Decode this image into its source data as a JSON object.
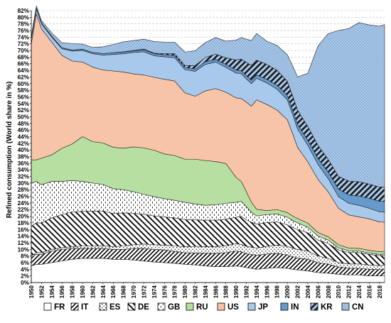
{
  "chart_data": {
    "type": "area",
    "stacked": true,
    "ylabel": "Refined consumption (World share in %)",
    "xlabel": "",
    "xlim": [
      1950,
      2019
    ],
    "ylim": [
      0,
      82
    ],
    "y_tick_step": 2,
    "y_tick_suffix": "%",
    "x_ticks": [
      1950,
      1952,
      1954,
      1956,
      1958,
      1960,
      1962,
      1964,
      1966,
      1968,
      1970,
      1972,
      1974,
      1976,
      1978,
      1980,
      1982,
      1984,
      1986,
      1988,
      1990,
      1992,
      1994,
      1996,
      1998,
      2000,
      2002,
      2004,
      2006,
      2008,
      2010,
      2012,
      2014,
      2016,
      2018
    ],
    "grid": "horizontal dashed",
    "legend_position": "bottom",
    "x": [
      1950,
      1951,
      1952,
      1954,
      1956,
      1958,
      1960,
      1962,
      1964,
      1966,
      1968,
      1970,
      1972,
      1974,
      1976,
      1978,
      1980,
      1982,
      1984,
      1986,
      1988,
      1990,
      1991,
      1992,
      1993,
      1994,
      1996,
      1998,
      2000,
      2001,
      2002,
      2004,
      2006,
      2008,
      2010,
      2012,
      2014,
      2016,
      2018,
      2019
    ],
    "series": [
      {
        "name": "FR",
        "color": "#ffffff",
        "pattern": "none",
        "values": [
          5.0,
          5.5,
          5.5,
          6.0,
          6.5,
          7.0,
          7.3,
          7.3,
          7.3,
          7.0,
          7.0,
          6.8,
          6.5,
          6.2,
          6.0,
          5.8,
          5.5,
          5.3,
          5.0,
          4.8,
          4.8,
          5.0,
          4.8,
          4.5,
          4.3,
          4.0,
          4.3,
          4.5,
          4.3,
          4.0,
          3.8,
          3.5,
          3.0,
          2.8,
          2.5,
          2.3,
          2.3,
          2.0,
          2.0,
          2.0
        ]
      },
      {
        "name": "IT",
        "color": "#ffffff",
        "pattern": "diag-right",
        "values": [
          2.5,
          3.0,
          3.0,
          3.5,
          3.5,
          3.3,
          3.0,
          3.0,
          3.0,
          3.0,
          3.0,
          3.5,
          3.8,
          3.8,
          3.8,
          3.6,
          3.5,
          3.6,
          3.8,
          4.0,
          4.2,
          4.5,
          4.5,
          4.2,
          4.2,
          4.2,
          4.3,
          4.3,
          4.0,
          3.8,
          3.6,
          3.5,
          3.0,
          2.7,
          2.2,
          2.0,
          2.0,
          2.0,
          1.9,
          2.0
        ]
      },
      {
        "name": "ES",
        "color": "#ffffff",
        "pattern": "dots",
        "values": [
          0.5,
          0.5,
          0.5,
          0.5,
          0.5,
          0.5,
          0.7,
          0.7,
          0.8,
          0.8,
          1.0,
          1.1,
          1.3,
          1.4,
          1.5,
          1.6,
          1.8,
          2.0,
          2.0,
          2.0,
          2.1,
          2.2,
          2.2,
          2.2,
          2.2,
          2.2,
          2.3,
          2.5,
          2.6,
          2.6,
          2.6,
          2.5,
          2.0,
          1.8,
          1.3,
          1.3,
          1.3,
          1.3,
          1.2,
          1.2
        ]
      },
      {
        "name": "DE",
        "color": "#ffffff",
        "pattern": "diag-left",
        "values": [
          9.0,
          9.0,
          9.0,
          9.5,
          10.0,
          10.5,
          10.5,
          10.5,
          10.5,
          10.0,
          10.0,
          9.5,
          9.0,
          8.7,
          8.5,
          8.5,
          8.2,
          8.0,
          8.0,
          8.0,
          8.0,
          8.0,
          8.5,
          8.0,
          7.5,
          7.2,
          7.2,
          7.0,
          6.5,
          6.2,
          6.0,
          5.5,
          4.8,
          4.5,
          3.8,
          3.5,
          3.4,
          3.2,
          3.0,
          3.0
        ]
      },
      {
        "name": "GB",
        "color": "#ffffff",
        "pattern": "dashes",
        "values": [
          13.0,
          12.5,
          11.5,
          11.0,
          10.0,
          9.5,
          9.0,
          8.5,
          8.0,
          7.5,
          7.0,
          6.5,
          6.0,
          5.8,
          5.5,
          5.3,
          5.2,
          4.8,
          4.5,
          4.7,
          4.8,
          4.5,
          4.5,
          4.0,
          3.0,
          2.5,
          2.4,
          2.4,
          2.3,
          2.2,
          2.0,
          1.7,
          1.2,
          1.0,
          0.7,
          0.5,
          0.5,
          0.4,
          0.4,
          0.4
        ]
      },
      {
        "name": "RU",
        "color": "#b7dfa1",
        "pattern": "none",
        "values": [
          7.0,
          6.5,
          8.0,
          8.0,
          10.0,
          11.0,
          13.5,
          12.5,
          12.5,
          12.5,
          12.5,
          13.5,
          14.0,
          14.0,
          13.5,
          13.5,
          13.0,
          13.5,
          13.5,
          13.0,
          12.0,
          7.5,
          6.0,
          4.5,
          3.0,
          2.0,
          1.2,
          1.3,
          1.4,
          1.3,
          1.3,
          1.2,
          1.1,
          1.0,
          0.9,
          0.8,
          0.8,
          0.8,
          0.8,
          0.8
        ]
      },
      {
        "name": "US",
        "color": "#f8c4a8",
        "pattern": "none",
        "values": [
          35.0,
          44.0,
          39.0,
          34.0,
          28.0,
          25.0,
          22.5,
          22.5,
          22.0,
          23.0,
          23.0,
          22.0,
          22.0,
          22.0,
          22.5,
          22.5,
          20.0,
          19.0,
          21.0,
          22.0,
          21.5,
          24.0,
          25.0,
          27.0,
          29.0,
          33.0,
          32.0,
          30.0,
          28.0,
          25.0,
          21.5,
          18.5,
          16.0,
          13.5,
          11.0,
          10.0,
          9.5,
          9.5,
          9.0,
          8.8
        ]
      },
      {
        "name": "JP",
        "color": "#a9c9ec",
        "pattern": "none",
        "values": [
          1.5,
          1.5,
          1.5,
          1.5,
          2.0,
          3.0,
          3.5,
          4.0,
          4.5,
          5.0,
          5.5,
          6.5,
          7.0,
          6.5,
          6.8,
          7.0,
          7.0,
          7.5,
          8.0,
          8.0,
          7.5,
          7.5,
          7.5,
          7.0,
          6.8,
          6.5,
          6.5,
          6.3,
          6.0,
          5.8,
          5.5,
          5.0,
          4.5,
          4.0,
          3.5,
          3.5,
          3.5,
          3.2,
          3.0,
          3.0
        ]
      },
      {
        "name": "IN",
        "color": "#6699cc",
        "pattern": "none",
        "values": [
          0.3,
          0.3,
          0.3,
          0.3,
          0.3,
          0.3,
          0.4,
          0.4,
          0.5,
          0.5,
          0.5,
          0.5,
          0.6,
          0.6,
          0.6,
          0.7,
          0.7,
          0.7,
          0.8,
          0.8,
          0.9,
          0.9,
          0.9,
          1.0,
          1.0,
          1.0,
          1.1,
          1.2,
          1.3,
          1.3,
          1.4,
          1.5,
          1.8,
          2.0,
          2.3,
          2.5,
          2.8,
          3.0,
          3.2,
          3.3
        ]
      },
      {
        "name": "KR",
        "color": "#a9c9ec",
        "pattern": "diag-bold",
        "values": [
          0.0,
          0.0,
          0.0,
          0.0,
          0.0,
          0.0,
          0.0,
          0.0,
          0.0,
          0.0,
          0.1,
          0.1,
          0.2,
          0.2,
          0.3,
          0.5,
          0.6,
          1.0,
          1.3,
          1.6,
          2.0,
          3.0,
          3.5,
          4.0,
          4.5,
          4.5,
          4.5,
          4.5,
          4.3,
          4.3,
          4.3,
          4.2,
          4.0,
          3.8,
          3.8,
          4.2,
          4.3,
          4.3,
          4.3,
          4.3
        ]
      },
      {
        "name": "CN",
        "color": "#a9c9ec",
        "pattern": "dots-fine",
        "values": [
          0.5,
          0.6,
          0.7,
          1.0,
          1.5,
          2.0,
          1.5,
          1.5,
          2.0,
          2.5,
          3.0,
          3.0,
          3.0,
          3.5,
          3.5,
          3.5,
          4.0,
          4.5,
          4.5,
          5.0,
          5.0,
          6.0,
          6.5,
          7.0,
          7.5,
          8.0,
          7.0,
          7.5,
          8.0,
          9.0,
          10.0,
          16.0,
          30.0,
          38.0,
          44.0,
          46.0,
          48.0,
          48.0,
          48.5,
          49.0
        ]
      }
    ]
  }
}
